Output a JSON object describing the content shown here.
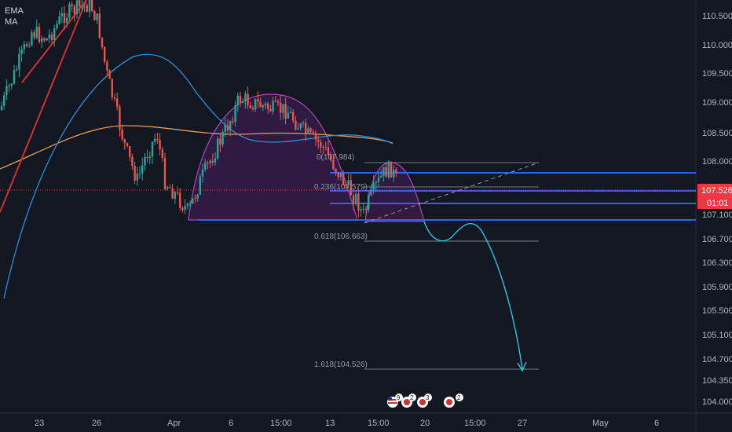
{
  "indicators": {
    "ema_label": "EMA",
    "ma_label": "MA"
  },
  "price_axis": {
    "ticks": [
      "110.500",
      "110.000",
      "109.500",
      "109.000",
      "108.500",
      "108.000",
      "107.100",
      "106.700",
      "106.300",
      "105.900",
      "105.500",
      "105.100",
      "104.700",
      "104.350",
      "104.000"
    ],
    "current_price": "107.526",
    "countdown": "01:01",
    "price_tag_color": "#f23645"
  },
  "time_axis": {
    "ticks": [
      "23",
      "26",
      "Apr",
      "6",
      "15:00",
      "13",
      "15:00",
      "20",
      "15:00",
      "27",
      "May",
      "6"
    ]
  },
  "fib_levels": [
    {
      "label": "0(107.984)"
    },
    {
      "label": "0.236(107.579)"
    },
    {
      "label": "0.618(106.663)"
    },
    {
      "label": "1.618(104.526)"
    }
  ],
  "event_markers": [
    {
      "icon": "us-flag-icon",
      "count": "9"
    },
    {
      "icon": "event-icon",
      "count": "2"
    },
    {
      "icon": "event-icon",
      "count": "3"
    },
    {
      "icon": "event-icon",
      "count": "2"
    }
  ],
  "colors": {
    "background": "#131722",
    "bull_candle": "#26a69a",
    "bear_candle": "#ef5350",
    "ema_line": "#2b8fd8",
    "ma_line": "#e69c5a",
    "support_lines": "#2962ff",
    "pattern_fill": "#9c27b0",
    "projection": "#26c6da",
    "trend_line": "#d32f2f"
  },
  "chart_data": {
    "type": "candlestick",
    "symbol_hint": "",
    "y_range": [
      103.9,
      110.7
    ],
    "horizontal_levels": [
      107.75,
      107.42,
      107.16,
      106.98
    ],
    "current_price_value": 107.526,
    "fib_values": [
      107.984,
      107.579,
      106.663,
      104.526
    ],
    "projection_target": 104.526
  }
}
